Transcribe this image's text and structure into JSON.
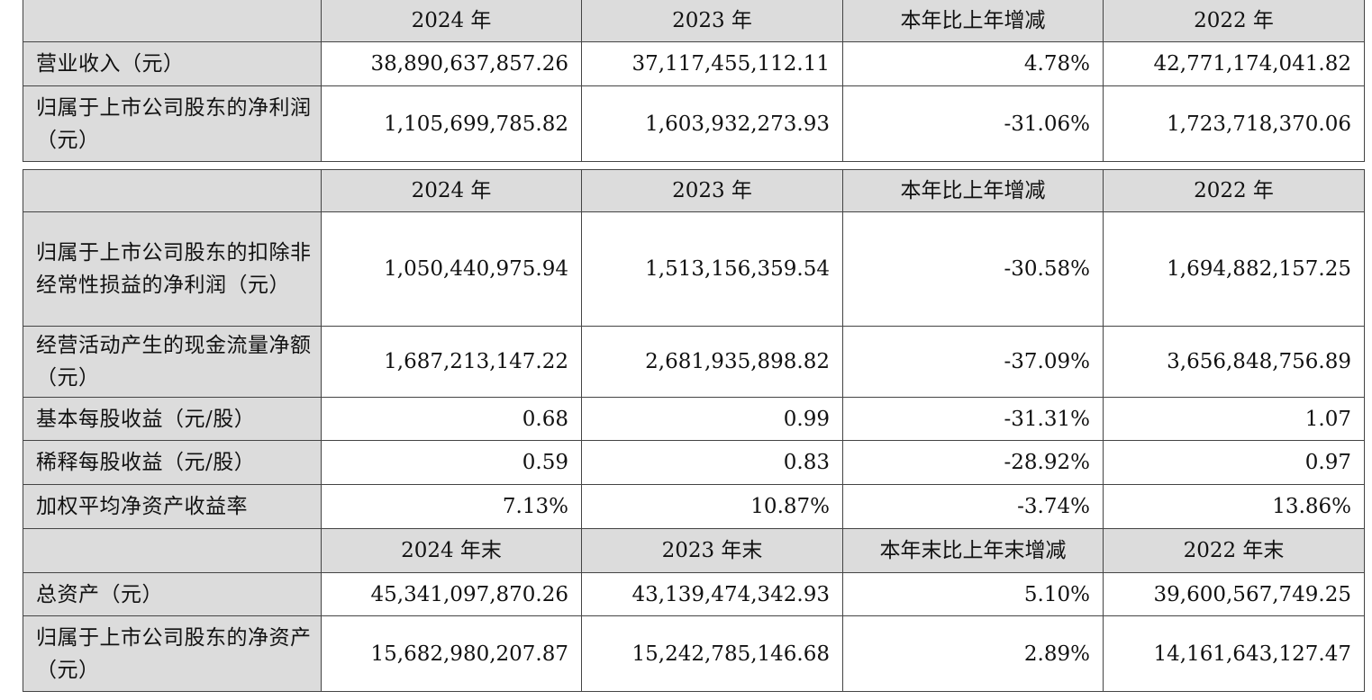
{
  "table1": {
    "header": [
      "",
      "2024 年",
      "2023 年",
      "本年比上年增减",
      "2022 年"
    ],
    "rows": [
      {
        "label": "营业收入（元）",
        "values": [
          "38,890,637,857.26",
          "37,117,455,112.11",
          "4.78%",
          "42,771,174,041.82"
        ]
      },
      {
        "label": "归属于上市公司股东的净利润（元）",
        "values": [
          "1,105,699,785.82",
          "1,603,932,273.93",
          "-31.06%",
          "1,723,718,370.06"
        ]
      }
    ]
  },
  "table2": {
    "header": [
      "",
      "2024 年",
      "2023 年",
      "本年比上年增减",
      "2022 年"
    ],
    "rows": [
      {
        "label": "归属于上市公司股东的扣除非经常性损益的净利润（元）",
        "values": [
          "1,050,440,975.94",
          "1,513,156,359.54",
          "-30.58%",
          "1,694,882,157.25"
        ]
      },
      {
        "label": "经营活动产生的现金流量净额（元）",
        "values": [
          "1,687,213,147.22",
          "2,681,935,898.82",
          "-37.09%",
          "3,656,848,756.89"
        ]
      },
      {
        "label": "基本每股收益（元/股）",
        "values": [
          "0.68",
          "0.99",
          "-31.31%",
          "1.07"
        ]
      },
      {
        "label": "稀释每股收益（元/股）",
        "values": [
          "0.59",
          "0.83",
          "-28.92%",
          "0.97"
        ]
      },
      {
        "label": "加权平均净资产收益率",
        "values": [
          "7.13%",
          "10.87%",
          "-3.74%",
          "13.86%"
        ]
      }
    ],
    "header2": [
      "",
      "2024 年末",
      "2023 年末",
      "本年末比上年末增减",
      "2022 年末"
    ],
    "rows2": [
      {
        "label": "总资产（元）",
        "values": [
          "45,341,097,870.26",
          "43,139,474,342.93",
          "5.10%",
          "39,600,567,749.25"
        ]
      },
      {
        "label": "归属于上市公司股东的净资产（元）",
        "values": [
          "15,682,980,207.87",
          "15,242,785,146.68",
          "2.89%",
          "14,161,643,127.47"
        ]
      }
    ]
  }
}
